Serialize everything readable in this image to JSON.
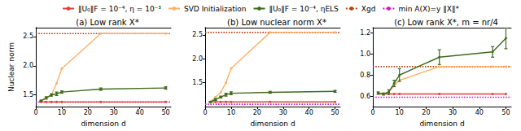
{
  "chart_data": [
    {
      "type": "line",
      "title": "(a) Low rank X*",
      "x_label": "dimension d",
      "y_label": "Nuclear norm",
      "legend": "top",
      "grid": false,
      "x": [
        2,
        4,
        6,
        8,
        10,
        25,
        50
      ],
      "xlim": [
        0,
        52
      ],
      "xticks": [
        0,
        10,
        20,
        30,
        40,
        50
      ],
      "ylim": [
        1.3,
        2.65
      ],
      "yticks": [
        {
          "value": 1.5,
          "label": "1.5"
        },
        {
          "value": 2.0,
          "label": "2.0"
        },
        {
          "value": 2.5,
          "label": "2.5"
        }
      ],
      "series": [
        {
          "name": "‖U₀‖F = 10⁻⁴, η = 10⁻³",
          "color": "#e0403a",
          "marker": "circle",
          "line_style": "solid",
          "values": [
            1.38,
            1.38,
            1.38,
            1.38,
            1.38,
            1.38,
            1.38
          ]
        },
        {
          "name": "SVD Initialization",
          "color": "#ffb06a",
          "marker": "circle",
          "line_style": "solid",
          "values": [
            1.4,
            1.45,
            1.5,
            1.7,
            1.95,
            2.55,
            2.55
          ]
        },
        {
          "name": "‖U₀‖F = 10⁻⁴, ηELS",
          "color": "#3d6b1e",
          "marker": "circle",
          "line_style": "solid",
          "values": [
            1.4,
            1.45,
            1.5,
            1.52,
            1.55,
            1.6,
            1.62
          ],
          "errors": [
            0.01,
            0.02,
            0.02,
            0.03,
            0.02,
            0.02,
            0.02
          ]
        },
        {
          "name": "Xgd",
          "type": "hline",
          "color": "#b8450f",
          "line_style": "dotted",
          "value": 2.55
        },
        {
          "name": "min A(X)=y ‖X‖*",
          "type": "hline",
          "color": "#c020c0",
          "line_style": "dotted",
          "value": 1.38
        }
      ]
    },
    {
      "type": "line",
      "title": "(b) Low nuclear norm X*",
      "x_label": "dimension d",
      "grid": false,
      "x": [
        2,
        4,
        6,
        8,
        10,
        25,
        50
      ],
      "xlim": [
        0,
        52
      ],
      "xticks": [
        0,
        10,
        20,
        30,
        40,
        50
      ],
      "ylim": [
        1.0,
        2.65
      ],
      "yticks": [
        {
          "value": 1.5,
          "label": "1.5"
        },
        {
          "value": 2.0,
          "label": "2.0"
        },
        {
          "value": 2.5,
          "label": "2.5"
        }
      ],
      "series": [
        {
          "name": "‖U₀‖F = 10⁻⁴, η = 10⁻³",
          "color": "#e0403a",
          "marker": "circle",
          "line_style": "solid",
          "values": [
            1.1,
            1.1,
            1.1,
            1.1,
            1.1,
            1.1,
            1.1
          ]
        },
        {
          "name": "SVD Initialization",
          "color": "#ffb06a",
          "marker": "circle",
          "line_style": "solid",
          "values": [
            1.1,
            1.2,
            1.3,
            1.5,
            1.8,
            2.55,
            2.55
          ]
        },
        {
          "name": "‖U₀‖F = 10⁻⁴, ηELS",
          "color": "#3d6b1e",
          "marker": "circle",
          "line_style": "solid",
          "values": [
            1.1,
            1.15,
            1.2,
            1.25,
            1.28,
            1.3,
            1.32
          ],
          "errors": [
            0.01,
            0.02,
            0.02,
            0.03,
            0.03,
            0.02,
            0.02
          ]
        },
        {
          "name": "Xgd",
          "type": "hline",
          "color": "#b8450f",
          "line_style": "dotted",
          "value": 2.55
        },
        {
          "name": "min A(X)=y ‖X‖*",
          "type": "hline",
          "color": "#c020c0",
          "line_style": "dotted",
          "value": 1.05
        }
      ]
    },
    {
      "type": "line",
      "title": "(c) Low rank X*, m = nr/4",
      "x_label": "dimension d",
      "grid": false,
      "x": [
        2,
        4,
        6,
        8,
        10,
        25,
        45,
        50
      ],
      "xlim": [
        0,
        52
      ],
      "xticks": [
        0,
        10,
        20,
        30,
        40,
        50
      ],
      "ylim": [
        0.5,
        1.25
      ],
      "yticks": [
        {
          "value": 0.6,
          "label": "0.6"
        },
        {
          "value": 0.8,
          "label": "0.8"
        },
        {
          "value": 1.0,
          "label": "1.0"
        },
        {
          "value": 1.2,
          "label": "1.2"
        }
      ],
      "series": [
        {
          "name": "‖U₀‖F = 10⁻⁴, η = 10⁻³",
          "color": "#e0403a",
          "marker": "circle",
          "line_style": "solid",
          "values": [
            0.62,
            0.62,
            0.62,
            0.62,
            0.62,
            0.62,
            0.62,
            0.62
          ]
        },
        {
          "name": "SVD Initialization",
          "color": "#ffb06a",
          "marker": "circle",
          "line_style": "solid",
          "values": [
            0.62,
            0.62,
            0.64,
            0.7,
            0.75,
            0.88,
            0.88,
            0.88
          ]
        },
        {
          "name": "‖U₀‖F = 10⁻⁴, ηELS",
          "color": "#3d6b1e",
          "marker": "circle",
          "line_style": "solid",
          "values": [
            0.63,
            0.62,
            0.64,
            0.72,
            0.8,
            0.97,
            1.02,
            1.15
          ],
          "errors": [
            0.01,
            0.01,
            0.02,
            0.03,
            0.06,
            0.07,
            0.05,
            0.1
          ]
        },
        {
          "name": "Xgd",
          "type": "hline",
          "color": "#b8450f",
          "line_style": "dotted",
          "value": 0.88
        },
        {
          "name": "min A(X)=y ‖X‖*",
          "type": "hline",
          "color": "#c020c0",
          "line_style": "dotted",
          "value": 0.59
        }
      ]
    }
  ]
}
